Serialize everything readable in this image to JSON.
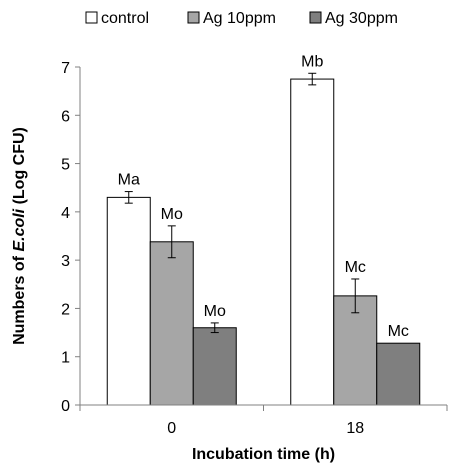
{
  "chart_data": {
    "type": "bar",
    "categories": [
      "0",
      "18"
    ],
    "series": [
      {
        "name": "control",
        "values": [
          4.3,
          6.75
        ],
        "errors": [
          0.12,
          0.12
        ],
        "labels": [
          "Ma",
          "Mb"
        ],
        "color": "#ffffff"
      },
      {
        "name": "Ag 10ppm",
        "values": [
          3.38,
          2.26
        ],
        "errors": [
          0.33,
          0.35
        ],
        "labels": [
          "Mo",
          "Mc"
        ],
        "color": "#a6a6a6"
      },
      {
        "name": "Ag 30ppm",
        "values": [
          1.6,
          1.28
        ],
        "errors": [
          0.1,
          0.0
        ],
        "labels": [
          "Mo",
          "Mc"
        ],
        "color": "#7f7f7f"
      }
    ],
    "ylim": [
      0,
      7
    ],
    "yticks": [
      "0",
      "1",
      "2",
      "3",
      "4",
      "5",
      "6",
      "7"
    ],
    "xlabel": "Incubation time (h)",
    "ylabel_prefix": "Numbers of ",
    "ylabel_italic": "E.coli",
    "ylabel_suffix": " (Log CFU)",
    "legend_position": "top",
    "grid": false
  }
}
